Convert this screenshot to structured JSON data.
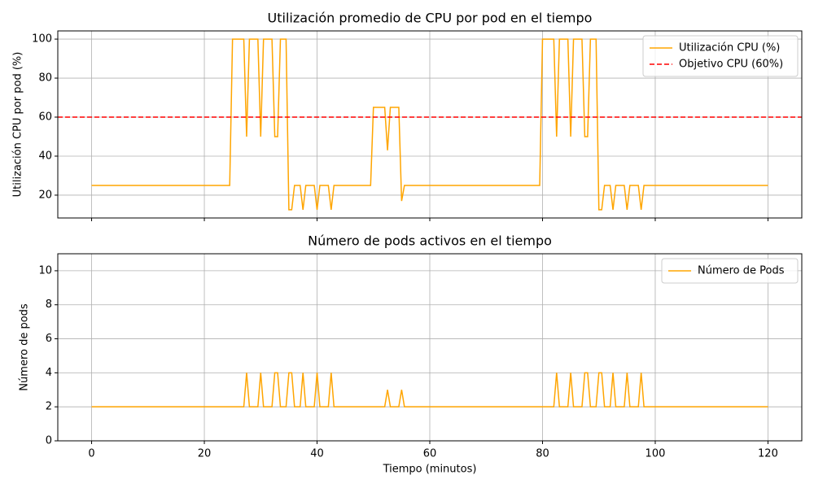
{
  "chart_data": [
    {
      "type": "line",
      "title": "Utilización promedio de CPU por pod en el tiempo",
      "y_label": "Utilización CPU por pod (%)",
      "xlim": [
        -6,
        126
      ],
      "xticks": [
        0,
        20,
        40,
        60,
        80,
        100,
        120
      ],
      "xtick_labels": false,
      "ylim": [
        8.3,
        104.2
      ],
      "yticks": [
        20,
        40,
        60,
        80,
        100
      ],
      "grid": true,
      "legend": "upper right",
      "series": [
        {
          "name": "Utilización CPU (%)",
          "color": "#ffa500",
          "x": [
            0,
            24.5,
            25,
            27,
            27.5,
            28,
            29.5,
            30,
            30.5,
            32,
            32.5,
            33,
            33.5,
            34.5,
            35,
            35.5,
            36,
            37,
            37.5,
            38,
            39.5,
            40,
            40.5,
            42,
            42.5,
            43,
            49.5,
            50,
            52,
            52.5,
            53,
            54.5,
            55,
            55.5,
            79.5,
            80,
            82,
            82.5,
            83,
            84.5,
            85,
            85.5,
            87,
            87.5,
            88,
            88.5,
            89.5,
            90,
            90.5,
            91,
            92,
            92.5,
            93,
            94.5,
            95,
            95.5,
            97,
            97.5,
            98,
            120
          ],
          "values": [
            25,
            25,
            100,
            100,
            50,
            100,
            100,
            50,
            100,
            100,
            50,
            50,
            100,
            100,
            12.5,
            12.5,
            25,
            25,
            12.5,
            25,
            25,
            12.5,
            25,
            25,
            12.5,
            25,
            25,
            65,
            65,
            43,
            65,
            65,
            17,
            25,
            25,
            100,
            100,
            50,
            100,
            100,
            50,
            100,
            100,
            50,
            50,
            100,
            100,
            12.5,
            12.5,
            25,
            25,
            12.5,
            25,
            25,
            12.5,
            25,
            25,
            12.5,
            25,
            25
          ]
        }
      ],
      "reference_lines": [
        {
          "name": "Objetivo CPU (60%)",
          "value": 60,
          "color": "#ff0000",
          "style": "dashed"
        }
      ]
    },
    {
      "type": "line",
      "title": "Número de pods activos en el tiempo",
      "x_label": "Tiempo (minutos)",
      "y_label": "Número de pods",
      "xlim": [
        -6,
        126
      ],
      "xticks": [
        0,
        20,
        40,
        60,
        80,
        100,
        120
      ],
      "xtick_labels": true,
      "ylim": [
        0,
        11
      ],
      "yticks": [
        0,
        2,
        4,
        6,
        8,
        10
      ],
      "grid": true,
      "legend": "upper right",
      "series": [
        {
          "name": "Número de Pods",
          "color": "#ffa500",
          "x": [
            0,
            27,
            27.5,
            28,
            29.5,
            30,
            30.5,
            32,
            32.5,
            33,
            33.5,
            34.5,
            35,
            35.5,
            36,
            37,
            37.5,
            38,
            39.5,
            40,
            40.5,
            42,
            42.5,
            43,
            52,
            52.5,
            53,
            54.5,
            55,
            55.5,
            82,
            82.5,
            83,
            84.5,
            85,
            85.5,
            87,
            87.5,
            88,
            88.5,
            89.5,
            90,
            90.5,
            91,
            92,
            92.5,
            93,
            94.5,
            95,
            95.5,
            97,
            97.5,
            98,
            120
          ],
          "values": [
            2,
            2,
            4,
            2,
            2,
            4,
            2,
            2,
            4,
            4,
            2,
            2,
            4,
            4,
            2,
            2,
            4,
            2,
            2,
            4,
            2,
            2,
            4,
            2,
            2,
            3,
            2,
            2,
            3,
            2,
            2,
            4,
            2,
            2,
            4,
            2,
            2,
            4,
            4,
            2,
            2,
            4,
            4,
            2,
            2,
            4,
            2,
            2,
            4,
            2,
            2,
            4,
            2,
            2
          ]
        }
      ]
    }
  ]
}
